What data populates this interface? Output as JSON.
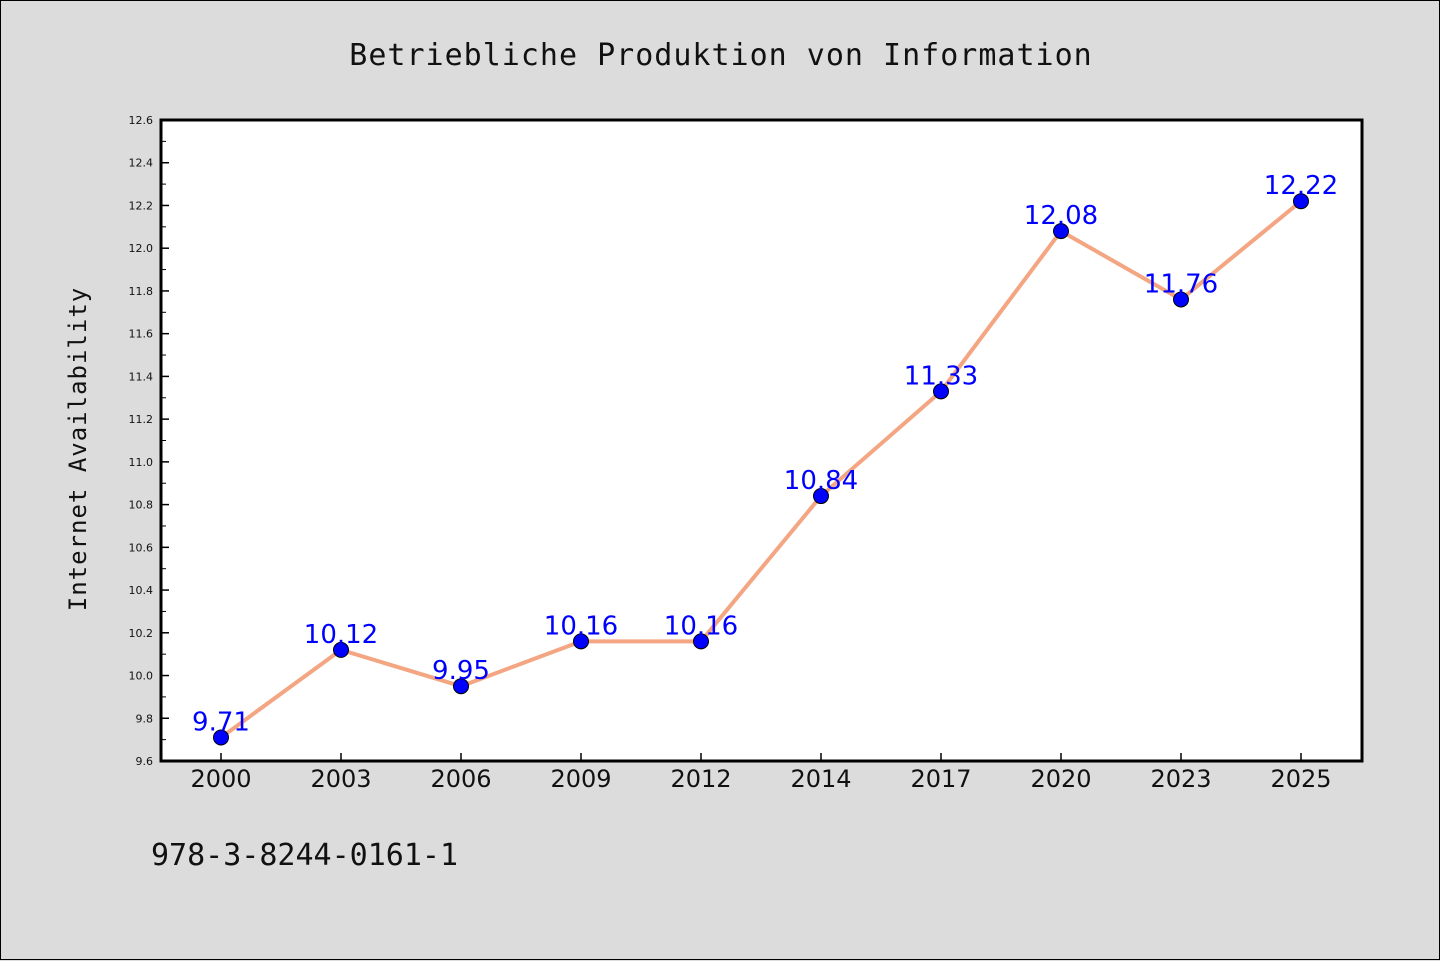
{
  "chart_data": {
    "type": "line",
    "title": "Betriebliche Produktion von Information",
    "xlabel": "",
    "ylabel": "Internet Availability",
    "categories": [
      "2000",
      "2003",
      "2006",
      "2009",
      "2012",
      "2014",
      "2017",
      "2020",
      "2023",
      "2025"
    ],
    "series": [
      {
        "values": [
          9.71,
          10.12,
          9.95,
          10.16,
          10.16,
          10.84,
          11.33,
          12.08,
          11.76,
          12.22
        ],
        "data_labels": [
          "9.71",
          "10.12",
          "9.95",
          "10.16",
          "10.16",
          "10.84",
          "11.33",
          "12.08",
          "11.76",
          "12.22"
        ]
      }
    ],
    "ylim": [
      9.6,
      12.6
    ],
    "yticks": [
      9.6,
      9.8,
      10.0,
      10.2,
      10.4,
      10.6,
      10.8,
      11.0,
      11.2,
      11.4,
      11.6,
      11.8,
      12.0,
      12.2,
      12.4,
      12.6
    ],
    "ytick_labels": [
      "9.6",
      "9.8",
      "10.0",
      "10.2",
      "10.4",
      "10.6",
      "10.8",
      "11.0",
      "11.2",
      "11.4",
      "11.6",
      "11.8",
      "12.0",
      "12.2",
      "12.4",
      "12.6"
    ],
    "grid": false,
    "legend": "none",
    "colors": {
      "line": "#f4a582",
      "marker": "#0000ff",
      "data_label": "#0000ff",
      "plot_background": "#ffffff",
      "figure_background": "#dcdcdc"
    }
  },
  "footer": {
    "text": "978-3-8244-0161-1"
  }
}
